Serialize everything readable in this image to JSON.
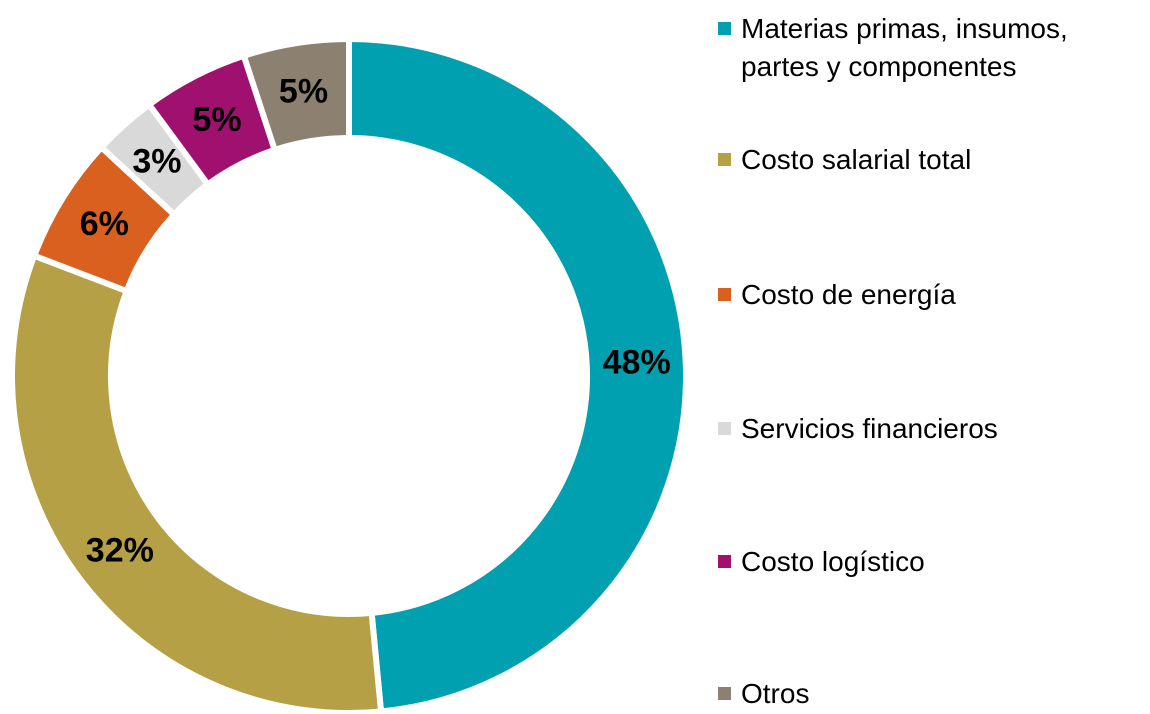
{
  "chart_data": {
    "type": "donut",
    "categories": [
      "Materias primas, insumos, partes y componentes",
      "Costo salarial total",
      "Costo de energía",
      "Servicios financieros",
      "Costo logístico",
      "Otros"
    ],
    "values": [
      48,
      32,
      6,
      3,
      5,
      5
    ],
    "value_labels": [
      "48%",
      "32%",
      "6%",
      "3%",
      "5%",
      "5%"
    ],
    "colors": [
      "#00a0b0",
      "#b5a045",
      "#d9601e",
      "#d9d9d9",
      "#a0106e",
      "#8c8070"
    ],
    "legend": "right"
  }
}
